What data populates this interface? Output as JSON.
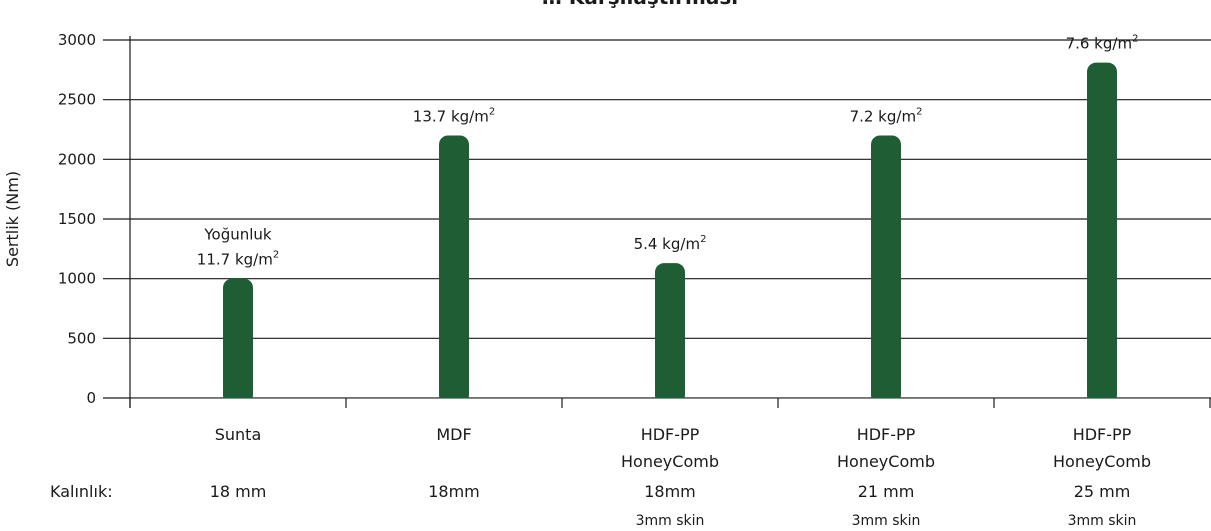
{
  "chart_data": {
    "type": "bar",
    "title": "… Karşılaştırması",
    "ylabel": "Sertlik (Nm)",
    "ylim": [
      0,
      3000
    ],
    "yticks": [
      0,
      500,
      1000,
      1500,
      2000,
      2500,
      3000
    ],
    "grid": true,
    "bar_color": "#1f5e34",
    "categories": [
      {
        "name": "Sunta",
        "subname": "",
        "thickness": "18 mm",
        "skin": ""
      },
      {
        "name": "MDF",
        "subname": "",
        "thickness": "18mm",
        "skin": ""
      },
      {
        "name": "HDF-PP",
        "subname": "HoneyComb",
        "thickness": "18mm",
        "skin": "3mm skin"
      },
      {
        "name": "HDF-PP",
        "subname": "HoneyComb",
        "thickness": "21 mm",
        "skin": "3mm skin"
      },
      {
        "name": "HDF-PP",
        "subname": "HoneyComb",
        "thickness": "25 mm",
        "skin": "3mm skin"
      }
    ],
    "values": [
      1000,
      2200,
      1130,
      2200,
      2810
    ],
    "annotations": [
      {
        "prefix": "Yoğunluk",
        "text": "11.7 kg/m",
        "sup": "2"
      },
      {
        "prefix": "",
        "text": "13.7 kg/m",
        "sup": "2"
      },
      {
        "prefix": "",
        "text": "5.4 kg/m",
        "sup": "2"
      },
      {
        "prefix": "",
        "text": "7.2 kg/m",
        "sup": "2"
      },
      {
        "prefix": "",
        "text": "7.6 kg/m",
        "sup": "2"
      }
    ],
    "row_label": "Kalınlık:"
  }
}
